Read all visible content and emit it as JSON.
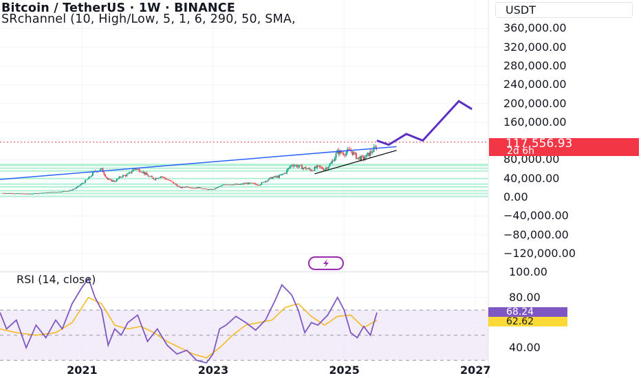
{
  "header": {
    "title": "Bitcoin / TetherUS · 1W · BINANCE",
    "indicator": "SRchannel (10, High/Low, 5, 1, 6, 290, 50, SMA,",
    "currency_button": "USDT"
  },
  "badges": {
    "last_price": "117,556.93",
    "countdown": "2d 6h",
    "rsi_value": "68.24",
    "rsi_ma_value": "62.62"
  },
  "rsi_panel": {
    "title": "RSI (14, close)"
  },
  "colors": {
    "background": "#ffffff",
    "grid": "#f0f3fa",
    "candle_up": "#089981",
    "candle_down": "#f23645",
    "trendline": "#2962ff",
    "projection": "#5b2ec4",
    "sr_channel": "#b2f0d4",
    "rsi_line": "#7e57c2",
    "rsi_ma": "#f5b716",
    "rsi_band": "#ede7f6",
    "price_badge": "#f23645"
  },
  "chart_data": [
    {
      "type": "candlestick",
      "title": "Bitcoin / TetherUS · 1W · BINANCE",
      "y_axis": {
        "ticks": [
          -120000,
          -80000,
          -40000,
          0,
          40000,
          80000,
          160000,
          200000,
          240000,
          280000,
          320000,
          360000
        ],
        "tick_labels": [
          "−120,000.00",
          "−80,000.00",
          "−40,000.00",
          "0.00",
          "40,000.00",
          "80,000.00",
          "160,000.00",
          "200,000.00",
          "240,000.00",
          "280,000.00",
          "320,000.00",
          "360,000.00"
        ]
      },
      "x_axis": {
        "ticks": [
          2021,
          2023,
          2025,
          2027
        ],
        "tick_labels": [
          "2021",
          "2023",
          "2025",
          "2027"
        ],
        "range": [
          2019.75,
          2027.2
        ]
      },
      "last_price": 117556.93,
      "series": [
        {
          "kind": "price_close",
          "x": [
            2019.8,
            2020.0,
            2020.2,
            2020.4,
            2020.6,
            2020.8,
            2020.9,
            2021.0,
            2021.1,
            2021.2,
            2021.3,
            2021.4,
            2021.5,
            2021.6,
            2021.7,
            2021.8,
            2021.9,
            2022.0,
            2022.1,
            2022.2,
            2022.3,
            2022.4,
            2022.5,
            2022.6,
            2022.7,
            2022.8,
            2022.9,
            2023.0,
            2023.1,
            2023.2,
            2023.3,
            2023.4,
            2023.5,
            2023.6,
            2023.7,
            2023.8,
            2023.9,
            2024.0,
            2024.1,
            2024.2,
            2024.3,
            2024.4,
            2024.5,
            2024.6,
            2024.7,
            2024.8,
            2024.9,
            2025.0,
            2025.1,
            2025.2,
            2025.3,
            2025.4,
            2025.5
          ],
          "y": [
            9000,
            8000,
            7000,
            9500,
            11000,
            13500,
            19000,
            29000,
            40000,
            56000,
            59000,
            37000,
            34000,
            45000,
            48000,
            61000,
            57000,
            46000,
            39000,
            45000,
            38000,
            30000,
            20000,
            23000,
            19500,
            20500,
            16500,
            16800,
            23000,
            28000,
            27500,
            26500,
            30000,
            29000,
            26500,
            35000,
            42000,
            44000,
            52000,
            70000,
            66000,
            62000,
            58000,
            65000,
            60000,
            72000,
            97000,
            94000,
            100000,
            84000,
            83000,
            95000,
            108000
          ]
        },
        {
          "kind": "trendline",
          "x": [
            2019.75,
            2025.8
          ],
          "y": [
            38000,
            108000
          ]
        },
        {
          "kind": "trendline",
          "x": [
            2024.55,
            2025.8
          ],
          "y": [
            50000,
            100000
          ]
        },
        {
          "kind": "projection",
          "x": [
            2025.5,
            2025.68,
            2025.95,
            2026.2,
            2026.75,
            2026.95
          ],
          "y": [
            121000,
            112000,
            135000,
            121000,
            205000,
            188000
          ]
        },
        {
          "kind": "support_resistance_levels",
          "y": [
            2000,
            8000,
            14000,
            22000,
            28000,
            40000,
            56000,
            62000,
            68000,
            70000
          ]
        }
      ]
    },
    {
      "type": "line",
      "title": "RSI (14, close)",
      "y_axis": {
        "ticks": [
          40,
          60,
          80,
          100
        ],
        "tick_labels": [
          "40.00",
          "60.00",
          "80.00",
          "100.00"
        ],
        "band": [
          30,
          70
        ]
      },
      "x_axis": {
        "range": [
          2019.75,
          2027.2
        ]
      },
      "series": [
        {
          "name": "RSI",
          "x": [
            2019.75,
            2019.85,
            2020.0,
            2020.15,
            2020.3,
            2020.45,
            2020.6,
            2020.7,
            2020.85,
            2021.0,
            2021.1,
            2021.2,
            2021.3,
            2021.4,
            2021.5,
            2021.6,
            2021.7,
            2021.85,
            2022.0,
            2022.15,
            2022.3,
            2022.45,
            2022.6,
            2022.75,
            2022.9,
            2023.0,
            2023.1,
            2023.2,
            2023.35,
            2023.5,
            2023.65,
            2023.8,
            2023.95,
            2024.05,
            2024.2,
            2024.3,
            2024.4,
            2024.5,
            2024.6,
            2024.75,
            2024.9,
            2025.0,
            2025.1,
            2025.2,
            2025.3,
            2025.4,
            2025.5
          ],
          "y": [
            68,
            55,
            62,
            40,
            58,
            48,
            62,
            55,
            75,
            88,
            95,
            80,
            70,
            42,
            55,
            50,
            60,
            66,
            45,
            55,
            42,
            35,
            38,
            30,
            28,
            35,
            55,
            58,
            65,
            60,
            54,
            62,
            78,
            90,
            82,
            70,
            52,
            60,
            58,
            66,
            80,
            70,
            52,
            48,
            57,
            50,
            68
          ]
        },
        {
          "name": "RSI-based MA",
          "x": [
            2019.75,
            2020.0,
            2020.3,
            2020.6,
            2020.85,
            2021.0,
            2021.1,
            2021.3,
            2021.5,
            2021.7,
            2021.9,
            2022.1,
            2022.3,
            2022.5,
            2022.7,
            2022.9,
            2023.1,
            2023.3,
            2023.5,
            2023.7,
            2023.9,
            2024.1,
            2024.3,
            2024.5,
            2024.7,
            2024.9,
            2025.1,
            2025.3,
            2025.5
          ],
          "y": [
            55,
            52,
            50,
            52,
            60,
            72,
            80,
            75,
            58,
            55,
            57,
            52,
            45,
            40,
            35,
            32,
            40,
            50,
            58,
            60,
            62,
            72,
            75,
            65,
            58,
            65,
            66,
            56,
            62
          ]
        }
      ]
    }
  ]
}
